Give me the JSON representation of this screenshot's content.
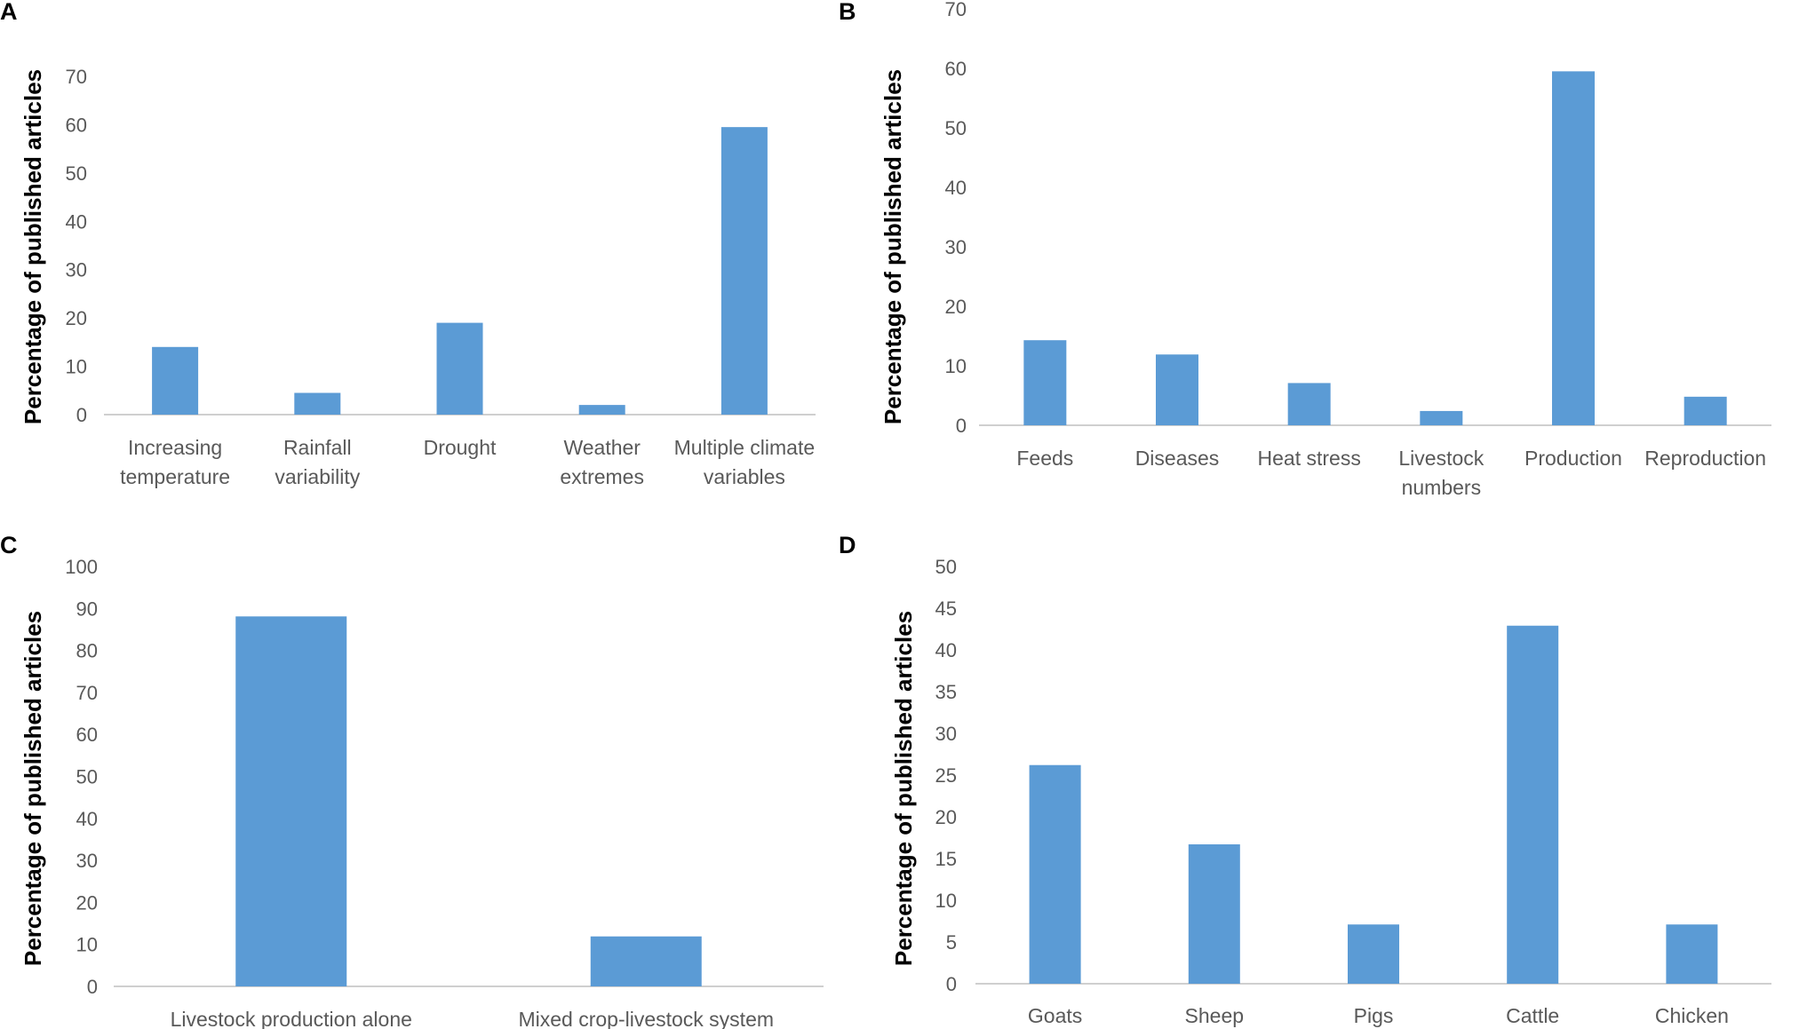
{
  "chart_data": [
    {
      "panel": "A",
      "type": "bar",
      "ylabel": "Percentage of published articles",
      "xlabel": "",
      "ylim": [
        0,
        70
      ],
      "ytick_step": 10,
      "yticks": [
        "0",
        "10",
        "20",
        "30",
        "40",
        "50",
        "60",
        "70"
      ],
      "categories": [
        [
          "Increasing",
          "temperature"
        ],
        [
          "Rainfall",
          "variability"
        ],
        [
          "Drought"
        ],
        [
          "Weather",
          "extremes"
        ],
        [
          "Multiple climate",
          "variables"
        ]
      ],
      "values": [
        14,
        4.5,
        19,
        2,
        59.5
      ],
      "color": "#5b9bd5",
      "grid": false
    },
    {
      "panel": "B",
      "type": "bar",
      "ylabel": "Percentage of published articles",
      "xlabel": "",
      "ylim": [
        0,
        70
      ],
      "ytick_step": 10,
      "yticks": [
        "0",
        "10",
        "20",
        "30",
        "40",
        "50",
        "60",
        "70"
      ],
      "categories": [
        [
          "Feeds"
        ],
        [
          "Diseases"
        ],
        [
          "Heat stress"
        ],
        [
          "Livestock",
          "numbers"
        ],
        [
          "Production"
        ],
        [
          "Reproduction"
        ]
      ],
      "values": [
        14.3,
        11.9,
        7.1,
        2.4,
        59.5,
        4.8
      ],
      "color": "#5b9bd5",
      "grid": false
    },
    {
      "panel": "C",
      "type": "bar",
      "ylabel": "Percentage of published articles",
      "xlabel": "",
      "ylim": [
        0,
        100
      ],
      "ytick_step": 10,
      "yticks": [
        "0",
        "10",
        "20",
        "30",
        "40",
        "50",
        "60",
        "70",
        "80",
        "90",
        "100"
      ],
      "categories": [
        [
          "Livestock production alone"
        ],
        [
          "Mixed crop-livestock system"
        ]
      ],
      "values": [
        88.1,
        11.9
      ],
      "color": "#5b9bd5",
      "grid": false
    },
    {
      "panel": "D",
      "type": "bar",
      "ylabel": "Percentage of published articles",
      "xlabel": "",
      "ylim": [
        0,
        50
      ],
      "ytick_step": 5,
      "yticks": [
        "0",
        "5",
        "10",
        "15",
        "20",
        "25",
        "30",
        "35",
        "40",
        "45",
        "50"
      ],
      "categories": [
        [
          "Goats"
        ],
        [
          "Sheep"
        ],
        [
          "Pigs"
        ],
        [
          "Cattle"
        ],
        [
          "Chicken"
        ]
      ],
      "values": [
        26.2,
        16.7,
        7.1,
        42.9,
        7.1
      ],
      "color": "#5b9bd5",
      "grid": false
    }
  ]
}
